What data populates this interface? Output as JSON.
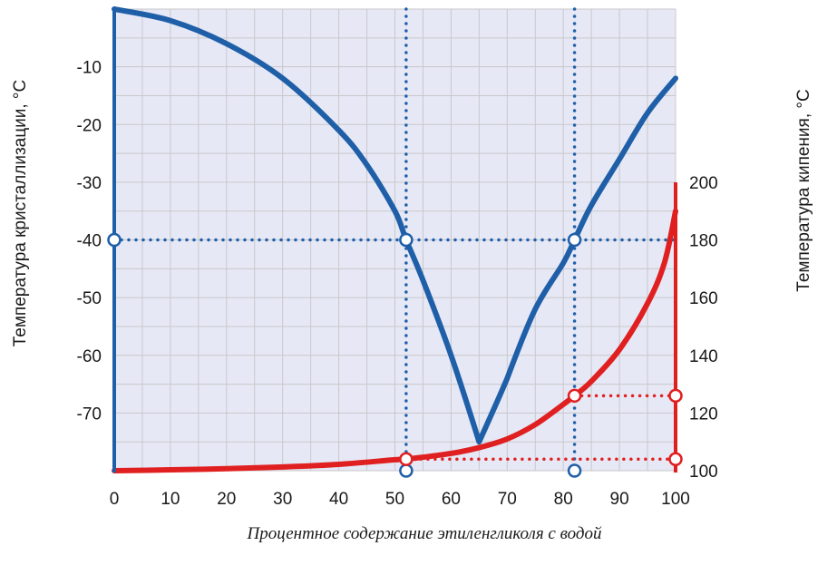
{
  "chart_data": {
    "type": "line",
    "title": "",
    "xlabel": "Процентное содержание этиленгликоля с водой",
    "ylabel_left": "Температура кристаллизации, °С",
    "ylabel_right": "Температура кипения, °С",
    "xlim": [
      0,
      100
    ],
    "ylim_left": [
      -80,
      0
    ],
    "ylim_right": [
      100,
      200
    ],
    "x_ticks": [
      "0",
      "10",
      "20",
      "30",
      "40",
      "50",
      "60",
      "70",
      "80",
      "90",
      "100"
    ],
    "y_left_ticks": [
      "-10",
      "-20",
      "-30",
      "-40",
      "-50",
      "-60",
      "-70"
    ],
    "y_left_tick_values": [
      -10,
      -20,
      -30,
      -40,
      -50,
      -60,
      -70
    ],
    "y_right_ticks": [
      "100",
      "120",
      "140",
      "160",
      "180",
      "200"
    ],
    "y_right_tick_values": [
      100,
      120,
      140,
      160,
      180,
      200
    ],
    "grid": true,
    "series": [
      {
        "axis": "left",
        "color": "#1f5fa8",
        "x": [
          0,
          10,
          20,
          30,
          40,
          45,
          50,
          52,
          55,
          60,
          65,
          70,
          75,
          80,
          82,
          85,
          90,
          95,
          100
        ],
        "y": [
          0,
          -2,
          -6,
          -12,
          -21,
          -27,
          -35,
          -40,
          -47,
          -60,
          -75,
          -64,
          -52,
          -44,
          -40,
          -34,
          -26,
          -18,
          -12
        ]
      },
      {
        "axis": "right",
        "color": "#e02020",
        "x": [
          0,
          10,
          20,
          30,
          40,
          50,
          52,
          60,
          65,
          70,
          75,
          80,
          82,
          85,
          90,
          95,
          98,
          100
        ],
        "y": [
          100,
          100.3,
          100.7,
          101.3,
          102.2,
          103.8,
          104,
          106,
          108,
          111,
          116,
          123,
          126,
          131,
          142,
          158,
          172,
          190
        ]
      }
    ],
    "guides": [
      {
        "type": "hline",
        "axis": "left",
        "y": -40,
        "x_from": 0,
        "x_to": 100,
        "color": "#1f5fa8"
      },
      {
        "type": "vline",
        "x": 52,
        "color": "#1f5fa8"
      },
      {
        "type": "vline",
        "x": 82,
        "color": "#1f5fa8"
      },
      {
        "type": "hline",
        "axis": "right",
        "y": 104,
        "x_from": 52,
        "x_to": 100,
        "color": "#e02020"
      },
      {
        "type": "hline",
        "axis": "right",
        "y": 126,
        "x_from": 82,
        "x_to": 100,
        "color": "#e02020"
      }
    ],
    "markers": [
      {
        "axis": "left",
        "x": 0,
        "y": -40
      },
      {
        "axis": "left",
        "x": 52,
        "y": -40
      },
      {
        "axis": "left",
        "x": 82,
        "y": -40
      },
      {
        "axis": "left",
        "x": 52,
        "y": -80
      },
      {
        "axis": "left",
        "x": 82,
        "y": -80
      },
      {
        "axis": "right",
        "x": 52,
        "y": 104
      },
      {
        "axis": "right",
        "x": 100,
        "y": 104
      },
      {
        "axis": "right",
        "x": 82,
        "y": 126
      },
      {
        "axis": "right",
        "x": 100,
        "y": 126
      }
    ],
    "colors": {
      "fill": "#e6e8f6",
      "grid": "#c9c9c9",
      "blue": "#1f5fa8",
      "red": "#e02020"
    }
  }
}
